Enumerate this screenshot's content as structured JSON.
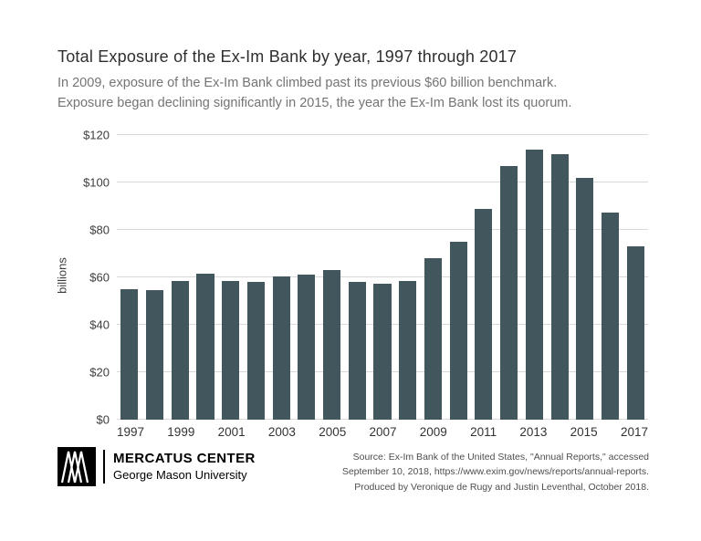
{
  "header": {
    "title": "Total Exposure of the Ex-Im Bank by year, 1997 through 2017",
    "subtitle_line1": "In 2009, exposure of the Ex-Im Bank climbed past its previous $60 billion benchmark.",
    "subtitle_line2": "Exposure began declining significantly in 2015, the year the Ex-Im Bank lost its quorum."
  },
  "chart_data": {
    "type": "bar",
    "title": "Total Exposure of the Ex-Im Bank by year, 1997 through 2017",
    "xlabel": "",
    "ylabel": "billions",
    "ylim": [
      0,
      120
    ],
    "ytick_step": 20,
    "ytick_labels": [
      "$0",
      "$20",
      "$40",
      "$60",
      "$80",
      "$100",
      "$120"
    ],
    "categories": [
      "1997",
      "1998",
      "1999",
      "2000",
      "2001",
      "2002",
      "2003",
      "2004",
      "2005",
      "2006",
      "2007",
      "2008",
      "2009",
      "2010",
      "2011",
      "2012",
      "2013",
      "2014",
      "2015",
      "2016",
      "2017"
    ],
    "values": [
      55,
      54.5,
      58.5,
      61.5,
      58.5,
      58,
      60.5,
      61,
      63,
      58,
      57.5,
      58.5,
      68,
      75,
      89,
      107,
      114,
      112,
      102,
      87.5,
      73
    ],
    "xticks_shown": [
      "1997",
      "1999",
      "2001",
      "2003",
      "2005",
      "2007",
      "2009",
      "2011",
      "2013",
      "2015",
      "2017"
    ],
    "bar_color": "#42575d",
    "grid": true,
    "legend": false
  },
  "footer": {
    "brand_name": "MERCATUS CENTER",
    "brand_sub": "George Mason University",
    "source_line1": "Source: Ex-Im Bank of the United States, \"Annual Reports,\" accessed",
    "source_line2": "September 10, 2018, https://www.exim.gov/news/reports/annual-reports.",
    "source_line3": "Produced by Veronique de Rugy and Justin Leventhal, October 2018."
  },
  "colors": {
    "bar": "#42575d",
    "gridline": "#d8d8d8",
    "title_text": "#2f2f2f",
    "subtitle_text": "#747474",
    "background": "#ffffff"
  }
}
